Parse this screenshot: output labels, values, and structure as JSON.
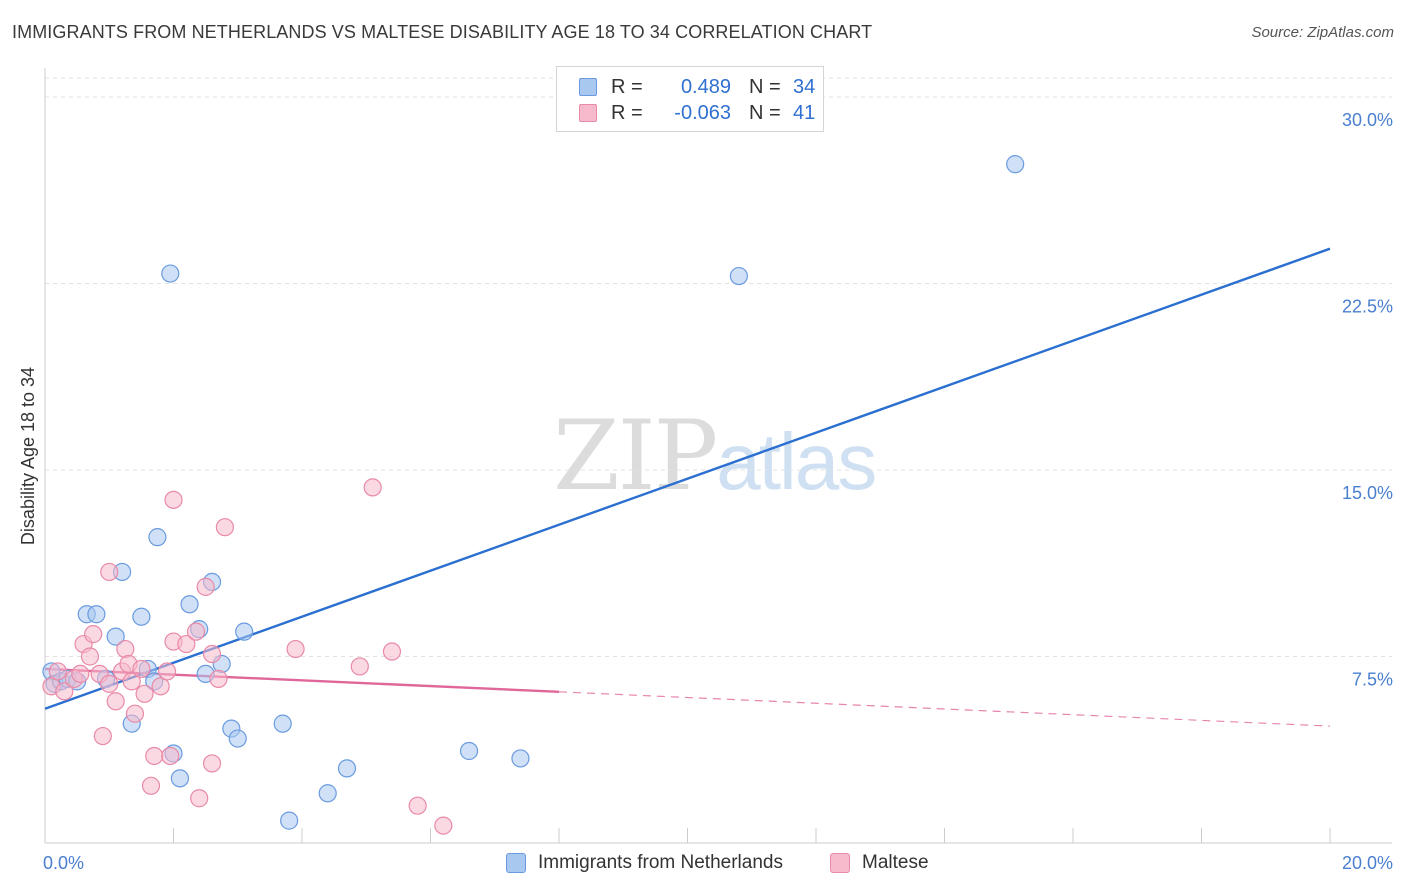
{
  "title": "IMMIGRANTS FROM NETHERLANDS VS MALTESE DISABILITY AGE 18 TO 34 CORRELATION CHART",
  "source": "Source: ZipAtlas.com",
  "watermark": {
    "zip": "ZIP",
    "atlas": "atlas"
  },
  "legend": {
    "rows": [
      {
        "r_label": "R =",
        "r_value": "0.489",
        "n_label": "N =",
        "n_value": "34",
        "color": "#a9c8f0",
        "stroke": "#6a9be0"
      },
      {
        "r_label": "R =",
        "r_value": "-0.063",
        "n_label": "N =",
        "n_value": "41",
        "color": "#f7b9cc",
        "stroke": "#e88aa8"
      }
    ]
  },
  "bottom_legend": [
    {
      "label": "Immigrants from Netherlands",
      "color": "#a9c8f0",
      "stroke": "#6a9be0"
    },
    {
      "label": "Maltese",
      "color": "#f7b9cc",
      "stroke": "#e88aa8"
    }
  ],
  "chart_data": {
    "type": "scatter",
    "title": "IMMIGRANTS FROM NETHERLANDS VS MALTESE DISABILITY AGE 18 TO 34 CORRELATION CHART",
    "xlabel": "",
    "ylabel": "Disability Age 18 to 34",
    "xlim": [
      0,
      20
    ],
    "ylim": [
      0,
      30
    ],
    "x_tick_labels": [
      "0.0%",
      "20.0%"
    ],
    "y_ticks": [
      7.5,
      15.0,
      22.5,
      30.0
    ],
    "y_tick_labels": [
      "7.5%",
      "15.0%",
      "22.5%",
      "30.0%"
    ],
    "grid": true,
    "series": [
      {
        "name": "Immigrants from Netherlands",
        "color": "#a9c8f0",
        "stroke": "#6a9be0",
        "line_color": "#2b6fd0",
        "points": [
          [
            0.1,
            6.9
          ],
          [
            0.15,
            6.4
          ],
          [
            0.25,
            6.5
          ],
          [
            0.35,
            6.6
          ],
          [
            0.5,
            6.5
          ],
          [
            0.65,
            9.2
          ],
          [
            0.8,
            9.2
          ],
          [
            0.95,
            6.6
          ],
          [
            1.1,
            8.3
          ],
          [
            1.2,
            10.9
          ],
          [
            1.35,
            4.8
          ],
          [
            1.5,
            9.1
          ],
          [
            1.6,
            7.0
          ],
          [
            1.7,
            6.5
          ],
          [
            1.75,
            12.3
          ],
          [
            1.95,
            22.9
          ],
          [
            2.0,
            3.6
          ],
          [
            2.1,
            2.6
          ],
          [
            2.25,
            9.6
          ],
          [
            2.4,
            8.6
          ],
          [
            2.5,
            6.8
          ],
          [
            2.6,
            10.5
          ],
          [
            2.75,
            7.2
          ],
          [
            2.9,
            4.6
          ],
          [
            3.0,
            4.2
          ],
          [
            3.1,
            8.5
          ],
          [
            3.7,
            4.8
          ],
          [
            3.8,
            0.9
          ],
          [
            4.4,
            2.0
          ],
          [
            4.7,
            3.0
          ],
          [
            6.6,
            3.7
          ],
          [
            7.4,
            3.4
          ],
          [
            10.8,
            22.8
          ],
          [
            15.1,
            27.3
          ]
        ],
        "trend": {
          "x": [
            0,
            20
          ],
          "y": [
            5.4,
            23.9
          ],
          "dashed_from": null
        }
      },
      {
        "name": "Maltese",
        "color": "#f7b9cc",
        "stroke": "#e88aa8",
        "line_color": "#e0679a",
        "points": [
          [
            0.1,
            6.3
          ],
          [
            0.2,
            6.9
          ],
          [
            0.3,
            6.1
          ],
          [
            0.45,
            6.6
          ],
          [
            0.55,
            6.8
          ],
          [
            0.6,
            8.0
          ],
          [
            0.7,
            7.5
          ],
          [
            0.75,
            8.4
          ],
          [
            0.85,
            6.8
          ],
          [
            0.9,
            4.3
          ],
          [
            1.0,
            6.4
          ],
          [
            1.0,
            10.9
          ],
          [
            1.1,
            5.7
          ],
          [
            1.2,
            6.9
          ],
          [
            1.25,
            7.8
          ],
          [
            1.3,
            7.2
          ],
          [
            1.35,
            6.5
          ],
          [
            1.4,
            5.2
          ],
          [
            1.5,
            7.0
          ],
          [
            1.55,
            6.0
          ],
          [
            1.65,
            2.3
          ],
          [
            1.7,
            3.5
          ],
          [
            1.8,
            6.3
          ],
          [
            1.95,
            3.5
          ],
          [
            2.0,
            8.1
          ],
          [
            2.0,
            13.8
          ],
          [
            2.2,
            8.0
          ],
          [
            2.35,
            8.5
          ],
          [
            2.4,
            1.8
          ],
          [
            2.5,
            10.3
          ],
          [
            2.6,
            7.6
          ],
          [
            2.6,
            3.2
          ],
          [
            2.8,
            12.7
          ],
          [
            3.9,
            7.8
          ],
          [
            4.9,
            7.1
          ],
          [
            5.1,
            14.3
          ],
          [
            5.4,
            7.7
          ],
          [
            5.8,
            1.5
          ],
          [
            6.2,
            0.7
          ],
          [
            2.7,
            6.6
          ],
          [
            1.9,
            6.9
          ]
        ],
        "trend": {
          "x": [
            0,
            20
          ],
          "y": [
            7.0,
            4.7
          ],
          "dashed_from": 8.0
        }
      }
    ]
  }
}
